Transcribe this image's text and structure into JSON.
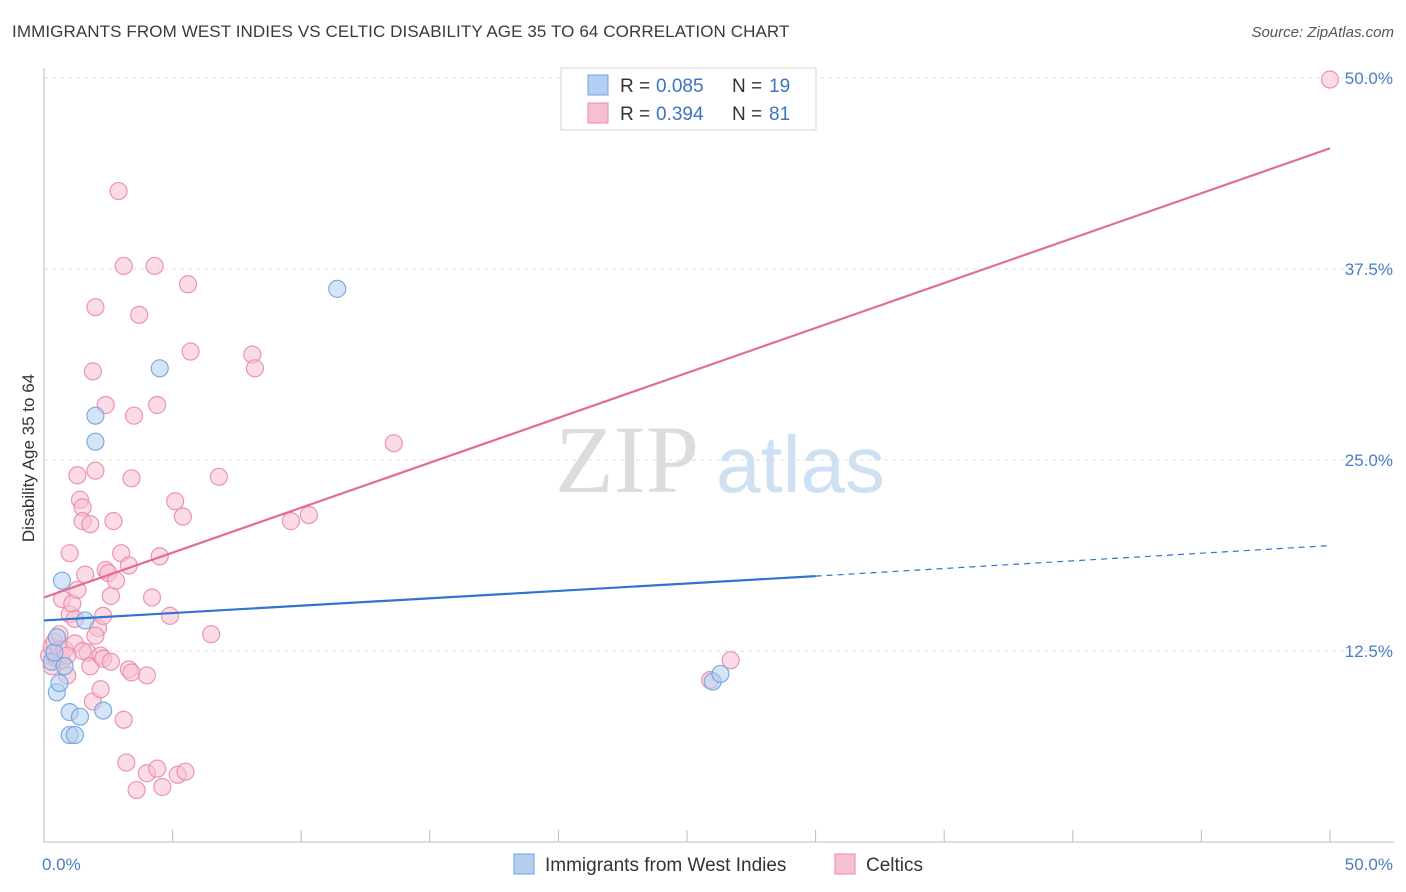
{
  "chart_data": {
    "type": "scatter",
    "title": "IMMIGRANTS FROM WEST INDIES VS CELTIC DISABILITY AGE 35 TO 64 CORRELATION CHART",
    "source": "Source: ZipAtlas.com",
    "xlabel": "",
    "ylabel": "Disability Age 35 to 64",
    "xlim": [
      0,
      50
    ],
    "ylim": [
      0,
      50
    ],
    "x_tick_labels": [
      {
        "value": 0,
        "label": "0.0%"
      },
      {
        "value": 50,
        "label": "50.0%"
      }
    ],
    "y_tick_labels": [
      {
        "value": 12.5,
        "label": "12.5%"
      },
      {
        "value": 25,
        "label": "25.0%"
      },
      {
        "value": 37.5,
        "label": "37.5%"
      },
      {
        "value": 50,
        "label": "50.0%"
      }
    ],
    "watermark": {
      "part1": "ZIP",
      "part2": "atlas"
    },
    "legend": [
      {
        "r_label": "R =",
        "r_value": "0.085",
        "n_label": "N =",
        "n_value": "19"
      },
      {
        "r_label": "R =",
        "r_value": "0.394",
        "n_label": "N =",
        "n_value": "81"
      }
    ],
    "series": [
      {
        "name": "Immigrants from West Indies",
        "color": "#6fa3e0",
        "fill": "#b3cff1",
        "line_color": "#2f74d0",
        "trend": {
          "x0": 0,
          "y0": 14.5,
          "x1": 30,
          "y1": 17.4,
          "dash_x1": 50,
          "dash_y1": 19.4
        },
        "points": [
          [
            0.3,
            11.8
          ],
          [
            0.4,
            12.4
          ],
          [
            0.5,
            13.4
          ],
          [
            0.5,
            9.8
          ],
          [
            0.6,
            10.4
          ],
          [
            0.7,
            17.1
          ],
          [
            0.8,
            11.5
          ],
          [
            1.0,
            7.0
          ],
          [
            1.0,
            8.5
          ],
          [
            1.2,
            7.0
          ],
          [
            1.4,
            8.2
          ],
          [
            1.6,
            14.5
          ],
          [
            2.0,
            27.9
          ],
          [
            2.0,
            26.2
          ],
          [
            2.3,
            8.6
          ],
          [
            4.5,
            31.0
          ],
          [
            11.4,
            36.2
          ],
          [
            26.0,
            10.5
          ],
          [
            26.3,
            11.0
          ]
        ]
      },
      {
        "name": "Celtics",
        "color": "#e98aa8",
        "fill": "#f7c0d2",
        "line_color": "#e36c96",
        "trend": {
          "x0": 0,
          "y0": 16.0,
          "x1": 50,
          "y1": 45.4
        },
        "points": [
          [
            0.2,
            12.2
          ],
          [
            0.3,
            12.8
          ],
          [
            0.3,
            11.5
          ],
          [
            0.4,
            13.1
          ],
          [
            0.5,
            12.0
          ],
          [
            0.6,
            13.6
          ],
          [
            0.6,
            12.6
          ],
          [
            0.7,
            15.9
          ],
          [
            0.7,
            11.9
          ],
          [
            0.8,
            12.6
          ],
          [
            0.9,
            10.9
          ],
          [
            1.0,
            14.9
          ],
          [
            1.0,
            18.9
          ],
          [
            1.1,
            15.6
          ],
          [
            1.2,
            14.6
          ],
          [
            1.2,
            13.0
          ],
          [
            1.3,
            16.5
          ],
          [
            1.3,
            24.0
          ],
          [
            1.4,
            22.4
          ],
          [
            1.5,
            21.9
          ],
          [
            1.5,
            21.0
          ],
          [
            1.6,
            17.5
          ],
          [
            1.7,
            12.4
          ],
          [
            1.8,
            20.8
          ],
          [
            1.8,
            11.5
          ],
          [
            1.9,
            9.2
          ],
          [
            1.9,
            30.8
          ],
          [
            2.0,
            35.0
          ],
          [
            2.0,
            24.3
          ],
          [
            2.1,
            14.0
          ],
          [
            2.2,
            12.2
          ],
          [
            2.2,
            10.0
          ],
          [
            2.3,
            14.8
          ],
          [
            2.3,
            12.0
          ],
          [
            2.4,
            28.6
          ],
          [
            2.4,
            17.8
          ],
          [
            2.5,
            17.6
          ],
          [
            2.6,
            16.1
          ],
          [
            2.7,
            21.0
          ],
          [
            2.8,
            17.1
          ],
          [
            2.9,
            42.6
          ],
          [
            3.0,
            18.9
          ],
          [
            3.1,
            8.0
          ],
          [
            3.1,
            37.7
          ],
          [
            3.2,
            5.2
          ],
          [
            3.3,
            11.3
          ],
          [
            3.3,
            18.1
          ],
          [
            3.4,
            23.8
          ],
          [
            3.4,
            11.1
          ],
          [
            3.5,
            27.9
          ],
          [
            3.6,
            3.4
          ],
          [
            3.7,
            34.5
          ],
          [
            4.0,
            10.9
          ],
          [
            4.0,
            4.5
          ],
          [
            4.2,
            16.0
          ],
          [
            4.3,
            37.7
          ],
          [
            4.4,
            4.8
          ],
          [
            4.4,
            28.6
          ],
          [
            4.5,
            18.7
          ],
          [
            4.6,
            3.6
          ],
          [
            4.9,
            14.8
          ],
          [
            5.1,
            22.3
          ],
          [
            5.2,
            4.4
          ],
          [
            5.4,
            21.3
          ],
          [
            5.5,
            4.6
          ],
          [
            5.6,
            36.5
          ],
          [
            5.7,
            32.1
          ],
          [
            6.5,
            13.6
          ],
          [
            6.8,
            23.9
          ],
          [
            8.1,
            31.9
          ],
          [
            8.2,
            31.0
          ],
          [
            9.6,
            21.0
          ],
          [
            10.3,
            21.4
          ],
          [
            13.6,
            26.1
          ],
          [
            25.9,
            10.6
          ],
          [
            26.7,
            11.9
          ],
          [
            50.0,
            49.9
          ],
          [
            2.0,
            13.5
          ],
          [
            1.5,
            12.5
          ],
          [
            0.9,
            12.2
          ],
          [
            2.6,
            11.8
          ]
        ]
      }
    ]
  }
}
